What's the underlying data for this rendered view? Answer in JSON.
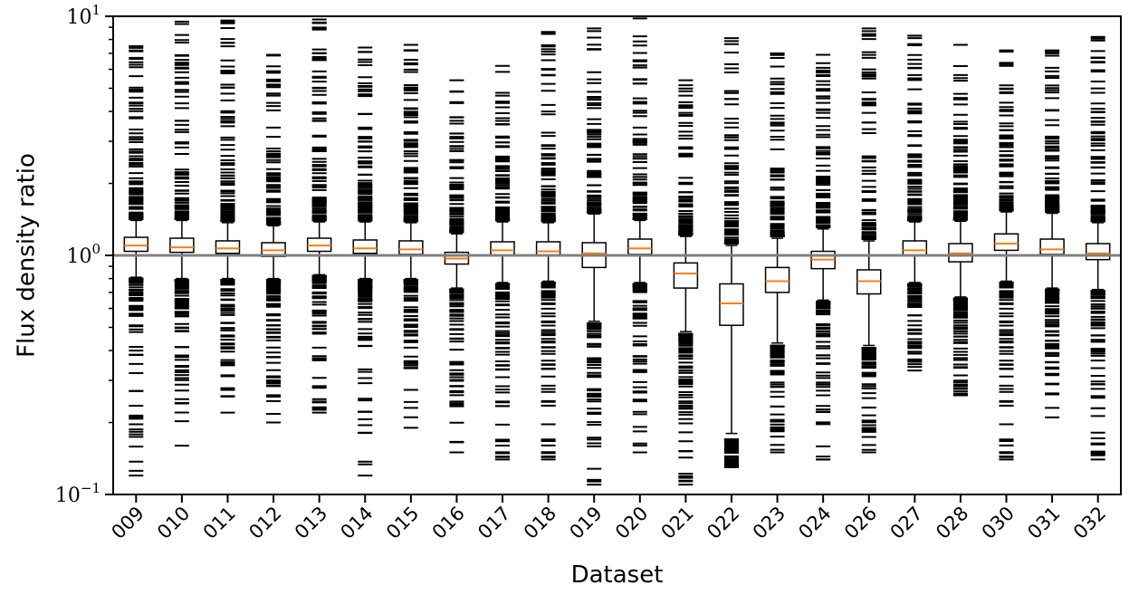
{
  "chart_data": {
    "type": "box",
    "xlabel": "Dataset",
    "ylabel": "Flux density ratio",
    "yscale": "log",
    "ylim": [
      0.1,
      10
    ],
    "y_ticks": [
      {
        "value": 10,
        "base": "10",
        "exp": "1"
      },
      {
        "value": 1,
        "base": "10",
        "exp": "0"
      },
      {
        "value": 0.1,
        "base": "10",
        "exp": "−1"
      }
    ],
    "reference_line": 1.0,
    "colors": {
      "box": "#000000",
      "median": "#ff7f0e",
      "reference_line": "#808080"
    },
    "categories": [
      "009",
      "010",
      "011",
      "012",
      "013",
      "014",
      "015",
      "016",
      "017",
      "018",
      "019",
      "020",
      "021",
      "022",
      "023",
      "024",
      "026",
      "027",
      "028",
      "030",
      "031",
      "032"
    ],
    "boxes": [
      {
        "q1": 1.04,
        "median": 1.1,
        "q3": 1.19,
        "whisker_low": 0.81,
        "whisker_high": 1.4,
        "outlier_low": [
          0.8,
          0.12
        ],
        "outlier_high": [
          1.42,
          7.5
        ]
      },
      {
        "q1": 1.03,
        "median": 1.08,
        "q3": 1.18,
        "whisker_low": 0.8,
        "whisker_high": 1.4,
        "outlier_low": [
          0.79,
          0.16
        ],
        "outlier_high": [
          1.42,
          9.5
        ]
      },
      {
        "q1": 1.02,
        "median": 1.07,
        "q3": 1.15,
        "whisker_low": 0.8,
        "whisker_high": 1.37,
        "outlier_low": [
          0.79,
          0.22
        ],
        "outlier_high": [
          1.39,
          9.6
        ]
      },
      {
        "q1": 0.99,
        "median": 1.05,
        "q3": 1.13,
        "whisker_low": 0.8,
        "whisker_high": 1.33,
        "outlier_low": [
          0.79,
          0.2
        ],
        "outlier_high": [
          1.35,
          6.9
        ]
      },
      {
        "q1": 1.04,
        "median": 1.1,
        "q3": 1.18,
        "whisker_low": 0.83,
        "whisker_high": 1.38,
        "outlier_low": [
          0.82,
          0.22
        ],
        "outlier_high": [
          1.4,
          9.7
        ]
      },
      {
        "q1": 1.02,
        "median": 1.07,
        "q3": 1.16,
        "whisker_low": 0.8,
        "whisker_high": 1.38,
        "outlier_low": [
          0.79,
          0.12
        ],
        "outlier_high": [
          1.4,
          7.4
        ]
      },
      {
        "q1": 1.01,
        "median": 1.06,
        "q3": 1.15,
        "whisker_low": 0.8,
        "whisker_high": 1.37,
        "outlier_low": [
          0.79,
          0.19
        ],
        "outlier_high": [
          1.39,
          7.6
        ]
      },
      {
        "q1": 0.92,
        "median": 0.97,
        "q3": 1.03,
        "whisker_low": 0.73,
        "whisker_high": 1.23,
        "outlier_low": [
          0.72,
          0.15
        ],
        "outlier_high": [
          1.25,
          5.4
        ]
      },
      {
        "q1": 1.0,
        "median": 1.05,
        "q3": 1.14,
        "whisker_low": 0.77,
        "whisker_high": 1.38,
        "outlier_low": [
          0.76,
          0.14
        ],
        "outlier_high": [
          1.4,
          6.2
        ]
      },
      {
        "q1": 1.0,
        "median": 1.04,
        "q3": 1.14,
        "whisker_low": 0.78,
        "whisker_high": 1.37,
        "outlier_low": [
          0.77,
          0.14
        ],
        "outlier_high": [
          1.39,
          8.6
        ]
      },
      {
        "q1": 0.89,
        "median": 1.02,
        "q3": 1.13,
        "whisker_low": 0.53,
        "whisker_high": 1.49,
        "outlier_low": [
          0.52,
          0.11
        ],
        "outlier_high": [
          1.51,
          8.9
        ]
      },
      {
        "q1": 1.01,
        "median": 1.07,
        "q3": 1.17,
        "whisker_low": 0.77,
        "whisker_high": 1.4,
        "outlier_low": [
          0.76,
          0.15
        ],
        "outlier_high": [
          1.42,
          9.8
        ]
      },
      {
        "q1": 0.73,
        "median": 0.84,
        "q3": 0.93,
        "whisker_low": 0.48,
        "whisker_high": 1.2,
        "outlier_low": [
          0.47,
          0.11
        ],
        "outlier_high": [
          1.22,
          5.4
        ]
      },
      {
        "q1": 0.51,
        "median": 0.63,
        "q3": 0.76,
        "whisker_low": 0.18,
        "whisker_high": 1.1,
        "outlier_low": [
          0.17,
          0.13
        ],
        "outlier_high": [
          1.12,
          8.1
        ]
      },
      {
        "q1": 0.7,
        "median": 0.78,
        "q3": 0.89,
        "whisker_low": 0.43,
        "whisker_high": 1.18,
        "outlier_low": [
          0.42,
          0.15
        ],
        "outlier_high": [
          1.2,
          7.0
        ]
      },
      {
        "q1": 0.88,
        "median": 0.96,
        "q3": 1.04,
        "whisker_low": 0.65,
        "whisker_high": 1.29,
        "outlier_low": [
          0.64,
          0.14
        ],
        "outlier_high": [
          1.31,
          6.9
        ]
      },
      {
        "q1": 0.69,
        "median": 0.78,
        "q3": 0.87,
        "whisker_low": 0.42,
        "whisker_high": 1.15,
        "outlier_low": [
          0.41,
          0.15
        ],
        "outlier_high": [
          1.17,
          8.9
        ]
      },
      {
        "q1": 1.0,
        "median": 1.05,
        "q3": 1.15,
        "whisker_low": 0.77,
        "whisker_high": 1.38,
        "outlier_low": [
          0.76,
          0.33
        ],
        "outlier_high": [
          1.4,
          8.3
        ]
      },
      {
        "q1": 0.94,
        "median": 1.02,
        "q3": 1.12,
        "whisker_low": 0.67,
        "whisker_high": 1.39,
        "outlier_low": [
          0.66,
          0.26
        ],
        "outlier_high": [
          1.41,
          7.6
        ]
      },
      {
        "q1": 1.05,
        "median": 1.12,
        "q3": 1.23,
        "whisker_low": 0.78,
        "whisker_high": 1.52,
        "outlier_low": [
          0.77,
          0.14
        ],
        "outlier_high": [
          1.54,
          7.2
        ]
      },
      {
        "q1": 1.01,
        "median": 1.06,
        "q3": 1.17,
        "whisker_low": 0.73,
        "whisker_high": 1.5,
        "outlier_low": [
          0.72,
          0.21
        ],
        "outlier_high": [
          1.52,
          7.2
        ]
      },
      {
        "q1": 0.96,
        "median": 1.02,
        "q3": 1.12,
        "whisker_low": 0.72,
        "whisker_high": 1.37,
        "outlier_low": [
          0.71,
          0.14
        ],
        "outlier_high": [
          1.39,
          8.2
        ]
      }
    ]
  }
}
